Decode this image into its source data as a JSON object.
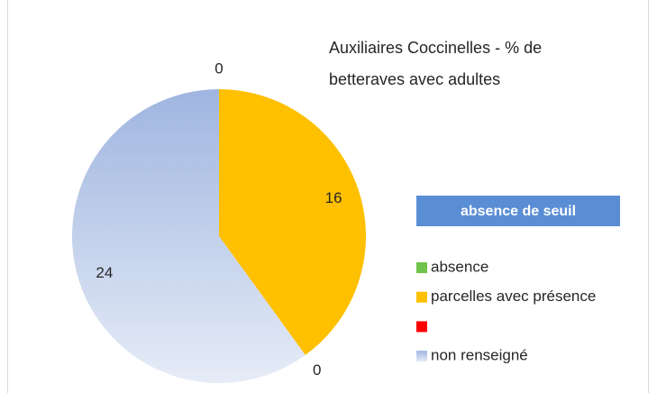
{
  "chart_data": {
    "type": "pie",
    "title": "Auxiliaires Coccinelles - % de betteraves avec adultes",
    "annotation": "absence de seuil",
    "categories": [
      "absence",
      "parcelles avec présence",
      null,
      "non renseigné"
    ],
    "values": [
      0,
      16,
      0,
      24
    ],
    "colors": [
      "#70c34a",
      "#ffc000",
      "#ff0000",
      "#b4c7e7"
    ],
    "legend": "right"
  }
}
